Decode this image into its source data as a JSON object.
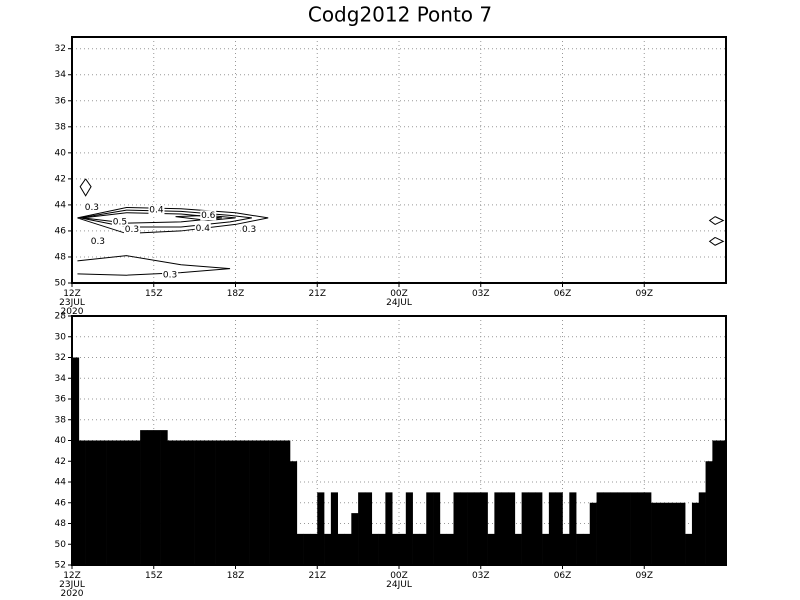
{
  "title": "Codg2012  Ponto  7",
  "chart_data": [
    {
      "type": "contour",
      "xlim": [
        0,
        24
      ],
      "ylim": [
        50,
        31.1
      ],
      "xticks": [
        {
          "value": 0,
          "label": "12Z\n23JUL\n2020"
        },
        {
          "value": 3,
          "label": "15Z"
        },
        {
          "value": 6,
          "label": "18Z"
        },
        {
          "value": 9,
          "label": "21Z"
        },
        {
          "value": 12,
          "label": "00Z\n24JUL"
        },
        {
          "value": 15,
          "label": "03Z"
        },
        {
          "value": 18,
          "label": "06Z"
        },
        {
          "value": 21,
          "label": "09Z"
        }
      ],
      "yticks": [
        32,
        34,
        36,
        38,
        40,
        42,
        44,
        46,
        48,
        50
      ],
      "grid": true,
      "color": "#000000",
      "contours": [
        {
          "level": 0.3,
          "x": [
            0.2,
            2,
            4,
            6,
            7.2,
            6,
            4,
            2,
            0.2
          ],
          "y": [
            45.0,
            44.2,
            44.3,
            44.6,
            45.0,
            45.5,
            46.0,
            46.2,
            45.0
          ]
        },
        {
          "level": 0.4,
          "x": [
            0.3,
            2,
            4,
            5.8,
            6.6,
            5.8,
            4,
            2,
            0.3
          ],
          "y": [
            45.0,
            44.4,
            44.5,
            44.8,
            45.0,
            45.3,
            45.7,
            45.7,
            45.0
          ]
        },
        {
          "level": 0.5,
          "x": [
            0.4,
            2,
            4,
            5.5,
            4,
            2,
            0.4
          ],
          "y": [
            45.0,
            44.6,
            44.7,
            45.0,
            45.3,
            45.4,
            45.0
          ]
        },
        {
          "level": 0.6,
          "x": [
            3.8,
            5,
            6,
            5,
            3.8
          ],
          "y": [
            44.9,
            44.8,
            45.0,
            45.2,
            44.9
          ]
        },
        {
          "level": 0.3,
          "x": [
            0.2,
            2,
            4,
            5.8,
            4,
            2,
            0.2
          ],
          "y": [
            48.3,
            47.9,
            48.6,
            48.9,
            49.2,
            49.4,
            49.3
          ]
        },
        {
          "level": 0.3,
          "x": [
            0.5,
            0.7,
            0.5,
            0.3,
            0.5
          ],
          "y": [
            42.0,
            42.6,
            43.3,
            42.6,
            42.0
          ]
        },
        {
          "level": 0.3,
          "x": [
            23.6,
            23.9,
            23.6,
            23.4,
            23.6
          ],
          "y": [
            44.9,
            45.2,
            45.5,
            45.2,
            44.9
          ]
        },
        {
          "level": 0.3,
          "x": [
            23.6,
            23.9,
            23.6,
            23.4,
            23.6
          ],
          "y": [
            46.5,
            46.8,
            47.1,
            46.8,
            46.5
          ]
        }
      ],
      "contour_labels": [
        {
          "x": 0.73,
          "y": 44.2,
          "level": 0.3
        },
        {
          "x": 3.1,
          "y": 44.4,
          "level": 0.4
        },
        {
          "x": 5.0,
          "y": 44.8,
          "level": 0.6
        },
        {
          "x": 1.76,
          "y": 45.3,
          "level": 0.5
        },
        {
          "x": 2.2,
          "y": 45.9,
          "level": 0.3
        },
        {
          "x": 4.8,
          "y": 45.8,
          "level": 0.4
        },
        {
          "x": 6.5,
          "y": 45.9,
          "level": 0.3
        },
        {
          "x": 0.95,
          "y": 46.8,
          "level": 0.3
        },
        {
          "x": 3.6,
          "y": 49.4,
          "level": 0.3
        }
      ]
    },
    {
      "type": "bar",
      "xlim": [
        0,
        24
      ],
      "ylim": [
        52,
        28
      ],
      "xticks": [
        {
          "value": 0,
          "label": "12Z\n23JUL\n2020"
        },
        {
          "value": 3,
          "label": "15Z"
        },
        {
          "value": 6,
          "label": "18Z"
        },
        {
          "value": 9,
          "label": "21Z"
        },
        {
          "value": 12,
          "label": "00Z\n24JUL"
        },
        {
          "value": 15,
          "label": "03Z"
        },
        {
          "value": 18,
          "label": "06Z"
        },
        {
          "value": 21,
          "label": "09Z"
        }
      ],
      "yticks": [
        28,
        30,
        32,
        34,
        36,
        38,
        40,
        42,
        44,
        46,
        48,
        50,
        52
      ],
      "grid": true,
      "color": "#000000",
      "x": [
        0,
        0.25,
        0.5,
        0.75,
        1,
        1.25,
        1.5,
        1.75,
        2,
        2.25,
        2.5,
        2.75,
        3,
        3.25,
        3.5,
        3.75,
        4,
        4.25,
        4.5,
        4.75,
        5,
        5.25,
        5.5,
        5.75,
        6,
        6.25,
        6.5,
        6.75,
        7,
        7.25,
        7.5,
        7.75,
        8,
        8.25,
        8.5,
        8.75,
        9,
        9.25,
        9.5,
        9.75,
        10,
        10.25,
        10.5,
        10.75,
        11,
        11.25,
        11.5,
        11.75,
        12,
        12.25,
        12.5,
        12.75,
        13,
        13.25,
        13.5,
        13.75,
        14,
        14.25,
        14.5,
        14.75,
        15,
        15.25,
        15.5,
        15.75,
        16,
        16.25,
        16.5,
        16.75,
        17,
        17.25,
        17.5,
        17.75,
        18,
        18.25,
        18.5,
        18.75,
        19,
        19.25,
        19.5,
        19.75,
        20,
        20.25,
        20.5,
        20.75,
        21,
        21.25,
        21.5,
        21.75,
        22,
        22.25,
        22.5,
        22.75,
        23,
        23.25,
        23.5,
        23.75
      ],
      "values": [
        32,
        40,
        40,
        40,
        40,
        40,
        40,
        40,
        40,
        40,
        39,
        39,
        39,
        39,
        40,
        40,
        40,
        40,
        40,
        40,
        40,
        40,
        40,
        40,
        40,
        40,
        40,
        40,
        40,
        40,
        40,
        40,
        42,
        49,
        49,
        49,
        45,
        49,
        45,
        49,
        49,
        47,
        45,
        45,
        49,
        49,
        45,
        49,
        49,
        45,
        49,
        49,
        45,
        45,
        49,
        49,
        45,
        45,
        45,
        45,
        45,
        49,
        45,
        45,
        45,
        49,
        45,
        45,
        45,
        49,
        45,
        45,
        49,
        45,
        49,
        49,
        46,
        45,
        45,
        45,
        45,
        45,
        45,
        45,
        45,
        46,
        46,
        46,
        46,
        46,
        49,
        46,
        45,
        42,
        40,
        40
      ]
    }
  ]
}
